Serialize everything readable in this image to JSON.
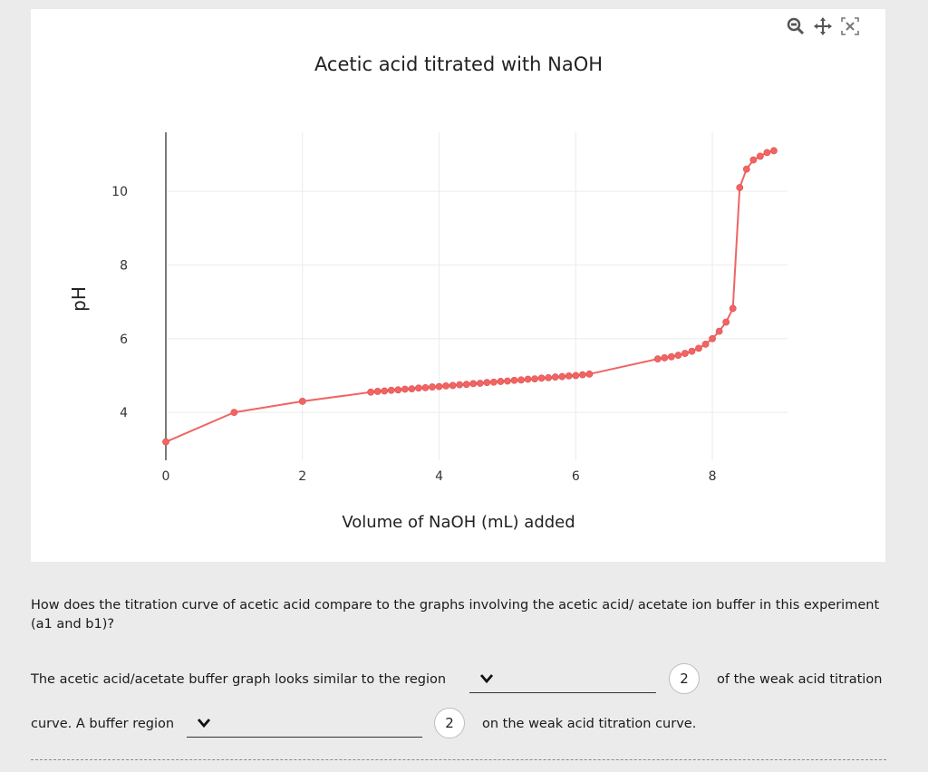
{
  "chart_data": {
    "type": "line",
    "title": "Acetic acid titrated with NaOH",
    "xlabel": "Volume of NaOH (mL) added",
    "ylabel": "pH",
    "xlim": [
      0,
      9.1
    ],
    "ylim": [
      2.7,
      11.6
    ],
    "xticks": [
      0,
      2,
      4,
      6,
      8
    ],
    "yticks": [
      4,
      6,
      8,
      10
    ],
    "grid": true,
    "color": "#f06464",
    "series": [
      {
        "x": [
          0,
          1,
          2,
          3,
          3.1,
          3.2,
          3.3,
          3.4,
          3.5,
          3.6,
          3.7,
          3.8,
          3.9,
          4.0,
          4.1,
          4.2,
          4.3,
          4.4,
          4.5,
          4.6,
          4.7,
          4.8,
          4.9,
          5.0,
          5.1,
          5.2,
          5.3,
          5.4,
          5.5,
          5.6,
          5.7,
          5.8,
          5.9,
          6.0,
          6.1,
          6.2,
          7.2,
          7.3,
          7.4,
          7.5,
          7.6,
          7.7,
          7.8,
          7.9,
          8.0,
          8.1,
          8.2,
          8.3,
          8.4,
          8.5,
          8.6,
          8.7,
          8.8,
          8.9
        ],
        "y": [
          3.2,
          4.0,
          4.3,
          4.55,
          4.57,
          4.58,
          4.6,
          4.61,
          4.63,
          4.64,
          4.66,
          4.67,
          4.69,
          4.7,
          4.72,
          4.73,
          4.75,
          4.76,
          4.78,
          4.79,
          4.81,
          4.82,
          4.84,
          4.85,
          4.87,
          4.88,
          4.9,
          4.91,
          4.93,
          4.94,
          4.96,
          4.97,
          4.99,
          5.0,
          5.02,
          5.04,
          5.45,
          5.48,
          5.51,
          5.55,
          5.6,
          5.66,
          5.74,
          5.85,
          6.0,
          6.2,
          6.45,
          6.82,
          10.1,
          10.6,
          10.85,
          10.95,
          11.05,
          11.1
        ]
      }
    ]
  },
  "question": {
    "prompt": "How does the titration curve of acetic acid compare to the graphs involving the acetic acid/ acetate ion buffer in this experiment (a1 and b1)?",
    "line1_before": "The acetic acid/acetate buffer graph looks similar to the region",
    "line1_after": "of the weak acid titration",
    "line2_before": "curve. A buffer region",
    "line2_after": "on the weak acid titration curve.",
    "badge1": "2",
    "badge2": "2",
    "dropdown1_value": "",
    "dropdown2_value": ""
  }
}
